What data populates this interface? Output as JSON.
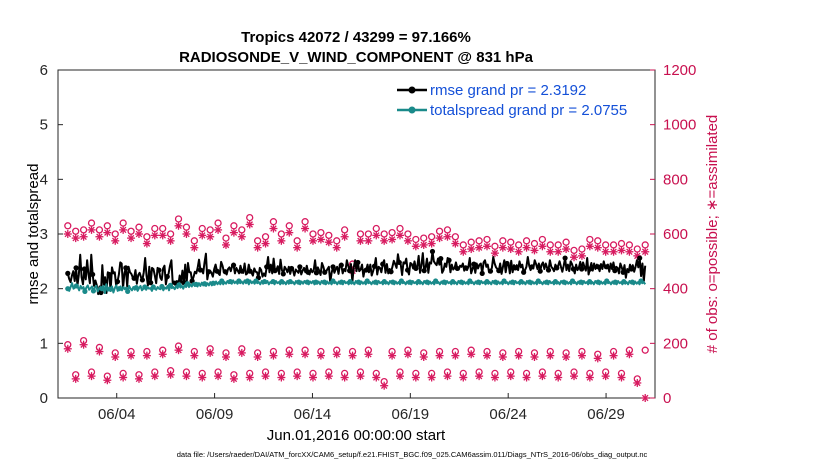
{
  "chart_data": {
    "type": "line",
    "title_line1": "Tropics 42072 / 43299 = 97.166%",
    "title_line2": "RADIOSONDE_V_WIND_COMPONENT @ 831 hPa",
    "xlabel": "Jun.01,2016 00:00:00 start",
    "ylabel_left": "rmse and totalspread",
    "ylabel_right": "# of obs: o=possible; ∗=assimilated",
    "ylim_left": [
      0,
      6
    ],
    "ylim_right": [
      0,
      1200
    ],
    "xlim": [
      0,
      30.5
    ],
    "yticks_left": [
      "0",
      "1",
      "2",
      "3",
      "4",
      "5",
      "6"
    ],
    "yticks_right": [
      "0",
      "200",
      "400",
      "600",
      "800",
      "1000",
      "1200"
    ],
    "xticks": [
      {
        "day": 3,
        "label": "06/04"
      },
      {
        "day": 8,
        "label": "06/09"
      },
      {
        "day": 13,
        "label": "06/14"
      },
      {
        "day": 18,
        "label": "06/19"
      },
      {
        "day": 23,
        "label": "06/24"
      },
      {
        "day": 28,
        "label": "06/29"
      }
    ],
    "series": [
      {
        "name": "rmse",
        "legend": "rmse grand pr = 2.3192",
        "color": "#000000",
        "values": [
          2.28,
          2.18,
          2.12,
          2.24,
          2.32,
          2.14,
          2.38,
          2.06,
          2.26,
          2.62,
          2.21,
          2.08,
          2.36,
          2.17,
          2.52,
          2.26,
          2.1,
          2.62,
          2.26,
          2.05,
          2.15,
          2.06,
          1.9,
          2.04,
          1.93,
          2.43,
          2.06,
          2.21,
          1.92,
          2.3,
          2.26,
          1.96,
          2.39,
          2.28,
          2.3,
          2.06,
          2.13,
          2.26,
          2.48,
          2.46,
          2.01,
          2.28,
          2.38,
          2.04,
          2.4,
          2.3,
          2.27,
          2.21,
          2.19,
          2.34,
          2.09,
          2.25,
          2.29,
          2.21,
          2.16,
          2.3,
          2.56,
          2.24,
          2.06,
          2.4,
          2.11,
          2.38,
          2.36,
          2.24,
          2.1,
          2.38,
          2.34,
          2.2,
          2.16,
          2.37,
          2.42,
          2.08,
          2.22,
          2.28,
          2.42,
          2.52,
          2.09,
          2.13,
          2.1,
          2.14,
          2.06,
          2.24,
          2.12,
          2.33,
          2.11,
          2.44,
          2.08,
          2.47,
          2.3,
          2.3,
          2.14,
          2.21,
          2.31,
          2.28,
          2.38,
          2.53,
          2.34,
          2.36,
          2.28,
          2.48,
          2.64,
          2.17,
          2.31,
          2.33,
          2.29,
          2.22,
          2.36,
          2.44,
          2.32,
          2.28,
          2.25,
          2.49,
          2.42,
          2.31,
          2.31,
          2.26,
          2.36,
          2.39,
          2.32,
          2.42,
          2.43,
          2.28,
          2.38,
          2.33,
          2.28,
          2.42,
          2.32,
          2.29,
          2.46,
          2.26,
          2.28,
          2.44,
          2.32,
          2.29,
          2.24,
          2.37,
          2.31,
          2.3,
          2.2,
          2.38,
          2.34,
          2.22,
          2.28,
          2.23,
          2.4,
          2.58,
          2.3,
          2.44,
          2.28,
          2.55,
          2.33,
          2.34,
          2.41,
          2.27,
          2.53,
          2.34,
          2.27,
          2.4,
          2.36,
          2.3,
          2.4,
          2.27,
          2.37,
          2.34,
          2.24,
          2.35,
          2.32,
          2.29,
          2.4,
          2.26,
          2.33,
          2.38,
          2.3,
          2.42,
          2.3,
          2.26,
          2.36,
          2.3,
          2.33,
          2.52,
          2.29,
          2.39,
          2.33,
          2.25,
          2.47,
          2.4,
          2.3,
          2.31,
          2.36,
          2.4,
          2.12,
          2.29,
          2.4,
          2.29,
          2.36,
          2.4,
          2.27,
          2.44,
          2.43,
          2.28,
          2.36,
          2.32,
          2.52,
          2.42,
          2.33,
          2.45,
          2.12,
          2.39,
          2.52,
          2.32,
          2.48,
          2.32,
          2.35,
          2.44,
          2.22,
          2.35,
          2.34,
          2.44,
          2.3,
          2.44,
          2.24,
          2.32,
          2.41,
          2.56,
          2.26,
          2.4,
          2.38,
          2.3,
          2.45,
          2.52,
          2.29,
          2.45,
          2.28,
          2.36,
          2.31,
          2.4,
          2.51,
          2.45,
          2.38,
          2.63,
          2.48,
          2.45,
          2.25,
          2.48,
          2.46,
          2.55,
          2.34,
          2.26,
          2.47,
          2.45,
          2.37,
          2.5,
          2.37,
          2.4,
          2.6,
          2.29,
          2.43,
          2.65,
          2.33,
          2.38,
          2.55,
          2.29,
          2.48,
          2.46,
          2.68,
          2.5,
          2.46,
          2.43,
          2.55,
          2.44,
          2.55,
          2.29,
          2.34,
          2.46,
          2.4,
          2.56,
          2.52,
          2.3,
          2.44,
          2.35,
          2.38,
          2.48,
          2.37,
          2.35,
          2.42,
          2.4,
          2.46,
          2.33,
          2.38,
          2.34,
          2.4,
          2.56,
          2.28,
          2.36,
          2.45,
          2.29,
          2.46,
          2.37,
          2.44,
          2.46,
          2.28,
          2.48,
          2.52,
          2.4,
          2.44,
          2.3,
          2.32,
          2.38,
          2.58,
          2.46,
          2.39,
          2.36,
          2.33,
          2.46,
          2.27,
          2.4,
          2.52,
          2.3,
          2.46,
          2.47,
          2.28,
          2.51,
          2.3,
          2.43,
          2.38,
          2.43,
          2.34,
          2.5,
          2.39,
          2.44,
          2.3,
          2.34,
          2.4,
          2.58,
          2.42,
          2.34,
          2.4,
          2.37,
          2.52,
          2.45,
          2.36,
          2.46,
          2.32,
          2.44,
          2.48,
          2.36,
          2.46,
          2.38,
          2.34,
          2.52,
          2.4,
          2.37,
          2.32,
          2.44,
          2.38,
          2.42,
          2.5,
          2.4,
          2.31,
          2.42,
          2.56,
          2.34,
          2.44,
          2.32,
          2.5,
          2.45,
          2.36,
          2.28,
          2.44,
          2.34,
          2.39,
          2.49,
          2.36,
          2.48,
          2.4,
          2.33,
          2.56,
          2.26,
          2.36,
          2.47,
          2.33,
          2.46,
          2.36,
          2.44,
          2.4,
          2.32,
          2.45,
          2.36,
          2.5,
          2.38,
          2.4,
          2.44,
          2.31,
          2.46,
          2.36,
          2.48,
          2.33,
          2.4,
          2.38,
          2.28,
          2.46,
          2.39,
          2.3,
          2.43,
          2.2,
          2.36,
          2.3,
          2.44,
          2.36,
          2.43,
          2.31,
          2.4,
          2.52,
          2.39,
          2.56,
          2.23,
          2.46,
          2.14,
          2.42
        ]
      },
      {
        "name": "totalspread",
        "legend": "totalspread grand pr = 2.0755",
        "color": "#1a8a8a",
        "values": [
          2.0,
          1.96,
          2.03,
          2.1,
          2.0,
          2.02,
          2.05,
          2.03,
          1.97,
          2.05,
          2.0,
          2.03,
          1.95,
          2.02,
          2.06,
          1.98,
          2.01,
          2.04,
          1.96,
          2.02,
          2.05,
          1.95,
          2.0,
          2.03,
          2.0,
          2.05,
          1.92,
          2.08,
          1.96,
          2.02,
          1.99,
          2.04,
          1.93,
          2.01,
          2.06,
          1.96,
          2.0,
          2.04,
          1.97,
          2.03,
          1.99,
          2.02,
          1.95,
          2.05,
          2.0,
          1.97,
          2.03,
          1.98,
          2.02,
          1.96,
          2.01,
          2.05,
          1.97,
          2.0,
          2.03,
          1.98,
          2.03,
          2.0,
          2.01,
          1.96,
          2.03,
          2.0,
          1.98,
          2.03,
          2.0,
          1.99,
          2.04,
          1.97,
          2.02,
          2.0,
          2.05,
          1.97,
          2.06,
          2.01,
          2.03,
          1.99,
          2.05,
          2.01,
          2.07,
          2.02,
          2.05,
          2.0,
          2.07,
          2.03,
          2.09,
          2.03,
          2.08,
          2.04,
          2.1,
          2.05,
          2.08,
          2.04,
          2.1,
          2.05,
          2.11,
          2.06,
          2.09,
          2.05,
          2.1,
          2.06,
          2.12,
          2.06,
          2.1,
          2.07,
          2.13,
          2.08,
          2.12,
          2.08,
          2.14,
          2.08,
          2.12,
          2.09,
          2.14,
          2.1,
          2.13,
          2.09,
          2.15,
          2.1,
          2.13,
          2.09,
          2.14,
          2.1,
          2.13,
          2.09,
          2.15,
          2.1,
          2.14,
          2.08,
          2.15,
          2.1,
          2.13,
          2.09,
          2.14,
          2.1,
          2.12,
          2.08,
          2.14,
          2.09,
          2.13,
          2.1,
          2.14,
          2.08,
          2.12,
          2.1,
          2.13,
          2.08,
          2.14,
          2.1,
          2.12,
          2.08,
          2.13,
          2.09,
          2.12,
          2.08,
          2.14,
          2.09,
          2.13,
          2.1,
          2.12,
          2.08,
          2.14,
          2.1,
          2.12,
          2.08,
          2.13,
          2.09,
          2.14,
          2.1,
          2.12,
          2.08,
          2.13,
          2.1,
          2.14,
          2.08,
          2.12,
          2.09,
          2.13,
          2.08,
          2.14,
          2.1,
          2.12,
          2.08,
          2.13,
          2.09,
          2.12,
          2.08,
          2.14,
          2.1,
          2.12,
          2.08,
          2.13,
          2.09,
          2.12,
          2.08,
          2.14,
          2.1,
          2.12,
          2.08,
          2.13,
          2.09,
          2.12,
          2.08,
          2.14,
          2.1,
          2.12,
          2.08,
          2.13,
          2.09,
          2.12,
          2.08,
          2.14,
          2.1,
          2.12,
          2.08,
          2.13,
          2.09,
          2.12,
          2.08,
          2.14,
          2.1,
          2.12,
          2.08,
          2.13,
          2.09,
          2.12,
          2.08,
          2.14,
          2.1,
          2.12,
          2.08,
          2.13,
          2.09,
          2.12,
          2.08,
          2.14,
          2.1,
          2.12,
          2.08,
          2.13,
          2.09,
          2.12,
          2.08,
          2.14,
          2.1,
          2.12,
          2.08,
          2.13,
          2.09,
          2.12,
          2.08,
          2.14,
          2.1,
          2.12,
          2.08,
          2.13,
          2.09,
          2.12,
          2.08,
          2.14,
          2.1,
          2.12,
          2.08,
          2.13,
          2.09,
          2.12,
          2.08,
          2.14,
          2.1,
          2.12,
          2.08,
          2.13,
          2.09,
          2.12,
          2.08,
          2.14,
          2.1,
          2.12,
          2.08,
          2.13,
          2.09,
          2.12,
          2.08,
          2.14,
          2.1,
          2.12,
          2.08,
          2.13,
          2.09,
          2.12,
          2.08,
          2.14,
          2.1,
          2.12,
          2.08,
          2.13,
          2.09,
          2.12,
          2.08,
          2.14,
          2.1,
          2.12,
          2.08,
          2.13,
          2.09,
          2.12,
          2.08,
          2.14,
          2.1,
          2.12,
          2.08,
          2.13,
          2.09,
          2.12,
          2.08,
          2.14,
          2.1,
          2.12,
          2.08,
          2.13,
          2.09,
          2.12,
          2.08,
          2.14,
          2.1,
          2.12,
          2.08,
          2.13,
          2.09,
          2.12,
          2.08,
          2.14,
          2.1,
          2.12,
          2.08,
          2.13,
          2.09,
          2.12,
          2.08,
          2.14,
          2.1,
          2.12,
          2.08,
          2.13,
          2.09,
          2.12,
          2.08,
          2.14,
          2.1,
          2.12,
          2.08,
          2.13,
          2.09,
          2.12,
          2.08,
          2.14,
          2.1,
          2.12,
          2.08,
          2.13,
          2.09,
          2.12,
          2.08,
          2.14,
          2.1,
          2.12,
          2.08,
          2.13,
          2.09,
          2.12,
          2.08,
          2.14,
          2.1,
          2.12,
          2.08,
          2.13,
          2.09,
          2.12,
          2.08,
          2.14,
          2.1,
          2.12,
          2.08,
          2.13,
          2.09,
          2.12,
          2.08,
          2.14,
          2.1,
          2.12,
          2.08,
          2.13,
          2.09,
          2.12,
          2.08,
          2.14,
          2.1,
          2.12,
          2.08,
          2.13,
          2.09,
          2.12,
          2.08,
          2.14,
          2.1,
          2.12,
          2.08
        ]
      }
    ],
    "obs_counts": {
      "color": "#d81b60",
      "day_start": 0,
      "step_days": 0.5,
      "possible": [
        630,
        610,
        615,
        640,
        615,
        630,
        600,
        640,
        610,
        625,
        590,
        620,
        620,
        600,
        655,
        625,
        575,
        620,
        615,
        640,
        585,
        630,
        615,
        660,
        575,
        590,
        645,
        600,
        630,
        575,
        645,
        600,
        605,
        595,
        575,
        615,
        490,
        600,
        600,
        620,
        600,
        605,
        620,
        600,
        580,
        585,
        590,
        610,
        615,
        590,
        560,
        570,
        575,
        580,
        555,
        575,
        570,
        560,
        575,
        565,
        580,
        560,
        560,
        570,
        540,
        545,
        580,
        575,
        560,
        560,
        565,
        560,
        545,
        560
      ],
      "assimilated": [
        600,
        585,
        590,
        615,
        590,
        605,
        575,
        615,
        585,
        600,
        565,
        595,
        595,
        575,
        630,
        600,
        550,
        595,
        590,
        615,
        560,
        605,
        590,
        635,
        550,
        565,
        620,
        575,
        605,
        550,
        620,
        575,
        580,
        570,
        550,
        590,
        465,
        575,
        575,
        595,
        575,
        580,
        595,
        575,
        555,
        560,
        565,
        585,
        590,
        565,
        535,
        545,
        550,
        555,
        530,
        550,
        545,
        535,
        550,
        540,
        555,
        535,
        535,
        545,
        515,
        520,
        555,
        550,
        535,
        535,
        540,
        535,
        520,
        535
      ],
      "possible_low": [
        195,
        85,
        210,
        95,
        185,
        80,
        165,
        90,
        170,
        85,
        170,
        95,
        175,
        100,
        190,
        95,
        170,
        90,
        180,
        95,
        165,
        85,
        180,
        90,
        165,
        95,
        170,
        90,
        175,
        95,
        175,
        90,
        170,
        95,
        175,
        90,
        170,
        95,
        175,
        90,
        60,
        170,
        95,
        175,
        90,
        165,
        90,
        170,
        95,
        170,
        90,
        175,
        95,
        170,
        90,
        165,
        95,
        170,
        90,
        165,
        95,
        170,
        90,
        165,
        95,
        170,
        90,
        160,
        95,
        170,
        90,
        175,
        70,
        175
      ],
      "assimilated_low": [
        180,
        70,
        195,
        80,
        170,
        65,
        150,
        75,
        155,
        70,
        155,
        80,
        160,
        85,
        175,
        80,
        155,
        75,
        165,
        80,
        150,
        70,
        165,
        75,
        150,
        80,
        155,
        75,
        160,
        80,
        160,
        75,
        155,
        80,
        160,
        75,
        155,
        80,
        160,
        75,
        45,
        155,
        80,
        160,
        75,
        150,
        75,
        155,
        80,
        155,
        75,
        160,
        80,
        155,
        75,
        150,
        80,
        155,
        75,
        150,
        80,
        155,
        75,
        150,
        80,
        155,
        75,
        145,
        80,
        155,
        75,
        160,
        55,
        0
      ]
    },
    "footnote": "data file: /Users/raeder/DAI/ATM_forcXX/CAM6_setup/f.e21.FHIST_BGC.f09_025.CAM6assim.011/Diags_NTrS_2016-06/obs_diag_output.nc"
  }
}
